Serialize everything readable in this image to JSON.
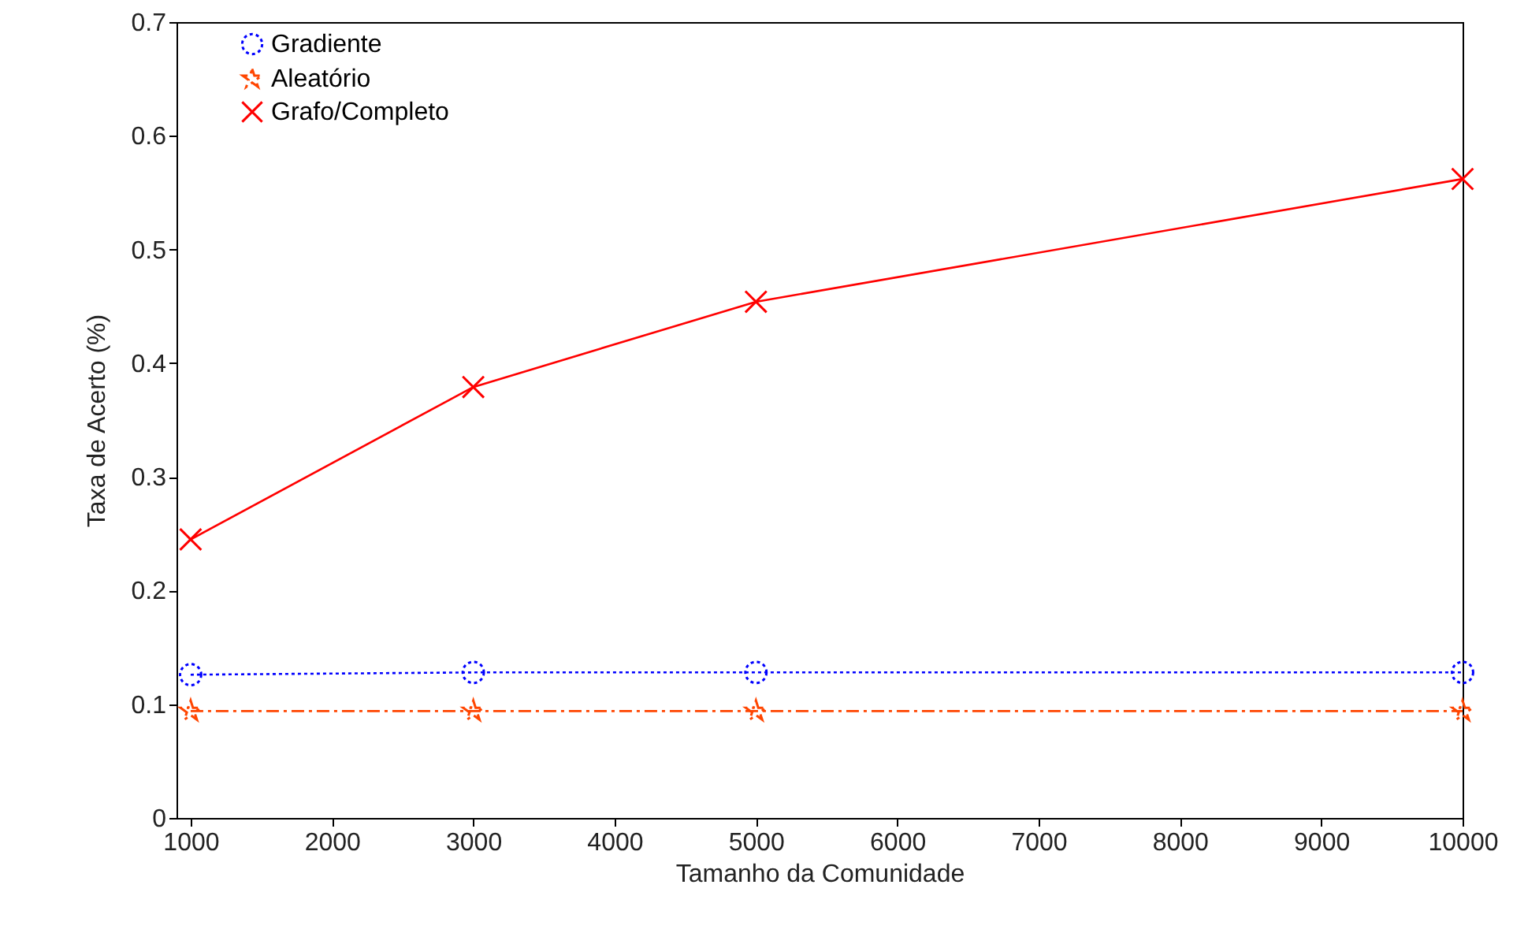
{
  "chart_data": {
    "type": "line",
    "xlabel": "Tamanho da Comunidade",
    "ylabel": "Taxa de Acerto (%)",
    "x": [
      1000,
      3000,
      5000,
      10000
    ],
    "series": [
      {
        "name": "Gradiente",
        "color": "#0000ff",
        "marker": "circle",
        "line_style": "dotted",
        "values": [
          0.126,
          0.128,
          0.128,
          0.128
        ]
      },
      {
        "name": "Aleatório",
        "color": "#ff4500",
        "marker": "star",
        "line_style": "dashed",
        "values": [
          0.094,
          0.094,
          0.094,
          0.094
        ]
      },
      {
        "name": "Grafo/Completo",
        "color": "#ff0000",
        "marker": "cross",
        "line_style": "solid",
        "values": [
          0.245,
          0.379,
          0.454,
          0.562
        ]
      }
    ],
    "xlim": [
      900,
      10000
    ],
    "xticks": [
      1000,
      2000,
      3000,
      4000,
      5000,
      6000,
      7000,
      8000,
      9000,
      10000
    ],
    "ylim": [
      0,
      0.7
    ],
    "yticks": [
      0,
      0.1,
      0.2,
      0.3,
      0.4,
      0.5,
      0.6,
      0.7
    ],
    "grid": false,
    "legend": "top left"
  }
}
